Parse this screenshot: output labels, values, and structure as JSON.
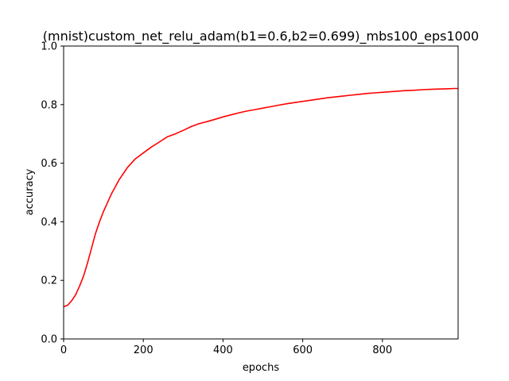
{
  "chart_data": {
    "type": "line",
    "title": "(mnist)custom_net_relu_adam(b1=0.6,b2=0.699)_mbs100_eps1000",
    "xlabel": "epochs",
    "ylabel": "accuracy",
    "xlim": [
      0,
      990
    ],
    "ylim": [
      0.0,
      1.0
    ],
    "x_ticks": [
      0,
      200,
      400,
      600,
      800
    ],
    "x_tick_labels": [
      "0",
      "200",
      "400",
      "600",
      "800"
    ],
    "y_ticks": [
      0.0,
      0.2,
      0.4,
      0.6,
      0.8,
      1.0
    ],
    "y_tick_labels": [
      "0.0",
      "0.2",
      "0.4",
      "0.6",
      "0.8",
      "1.0"
    ],
    "grid": false,
    "legend": null,
    "series": [
      {
        "color": "#ff0000",
        "x": [
          0,
          10,
          20,
          30,
          40,
          50,
          60,
          70,
          80,
          90,
          100,
          110,
          120,
          130,
          140,
          150,
          160,
          170,
          180,
          190,
          200,
          220,
          240,
          260,
          280,
          300,
          320,
          340,
          360,
          380,
          400,
          420,
          440,
          460,
          480,
          500,
          520,
          540,
          560,
          580,
          600,
          620,
          640,
          660,
          680,
          700,
          720,
          740,
          760,
          780,
          800,
          820,
          840,
          860,
          880,
          900,
          920,
          940,
          960,
          980,
          990
        ],
        "y": [
          0.11,
          0.115,
          0.13,
          0.15,
          0.18,
          0.215,
          0.26,
          0.31,
          0.36,
          0.4,
          0.435,
          0.465,
          0.495,
          0.52,
          0.545,
          0.565,
          0.585,
          0.6,
          0.615,
          0.625,
          0.635,
          0.655,
          0.672,
          0.69,
          0.7,
          0.712,
          0.725,
          0.735,
          0.742,
          0.75,
          0.758,
          0.765,
          0.772,
          0.778,
          0.783,
          0.788,
          0.793,
          0.798,
          0.803,
          0.807,
          0.811,
          0.815,
          0.819,
          0.823,
          0.826,
          0.829,
          0.832,
          0.835,
          0.838,
          0.84,
          0.842,
          0.844,
          0.846,
          0.848,
          0.849,
          0.851,
          0.852,
          0.853,
          0.854,
          0.855,
          0.855
        ]
      }
    ]
  }
}
